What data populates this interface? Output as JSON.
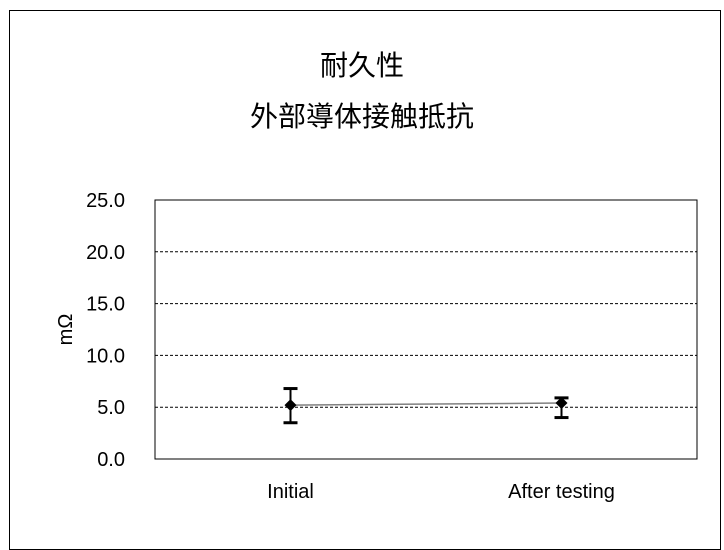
{
  "chart_data": {
    "type": "line",
    "title": "耐久性",
    "subtitle": "外部導体接触抵抗",
    "ylabel": "mΩ",
    "xlabel": "",
    "categories": [
      "Initial",
      "After testing"
    ],
    "series": [
      {
        "values": [
          5.2,
          5.4
        ],
        "error_low": [
          3.5,
          4.0
        ],
        "error_high": [
          6.8,
          5.9
        ]
      }
    ],
    "ylim": [
      0,
      25
    ],
    "yticks": [
      "0.0",
      "5.0",
      "10.0",
      "15.0",
      "20.0",
      "25.0"
    ],
    "grid": "horizontal dashed",
    "legend": "none",
    "colors": {
      "line": "#808080",
      "marker": "#000000",
      "axis": "#000000"
    }
  }
}
